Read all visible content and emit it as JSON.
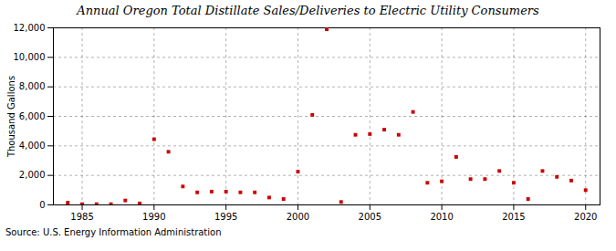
{
  "chart_data": {
    "type": "scatter",
    "title": "Annual Oregon Total Distillate Sales/Deliveries to Electric Utility Consumers",
    "ylabel": "Thousand Gallons",
    "annotation": "Source: U.S. Energy Information Administration",
    "x": [
      1984,
      1985,
      1986,
      1987,
      1988,
      1989,
      1990,
      1991,
      1992,
      1993,
      1994,
      1995,
      1996,
      1997,
      1998,
      1999,
      2000,
      2001,
      2002,
      2003,
      2004,
      2005,
      2006,
      2007,
      2008,
      2009,
      2010,
      2011,
      2012,
      2013,
      2014,
      2015,
      2016,
      2017,
      2018,
      2019,
      2020
    ],
    "values": [
      150,
      50,
      50,
      50,
      300,
      100,
      4450,
      3600,
      1250,
      850,
      900,
      900,
      850,
      850,
      500,
      400,
      2250,
      6100,
      11900,
      200,
      4750,
      4800,
      5100,
      4750,
      6300,
      1500,
      1600,
      3250,
      1750,
      1750,
      2300,
      1500,
      400,
      2300,
      1900,
      1650,
      1000
    ],
    "color": "#cc0000",
    "marker": "square",
    "xlim": [
      1983,
      2021
    ],
    "xticks": [
      1985,
      1990,
      1995,
      2000,
      2005,
      2010,
      2015,
      2020
    ],
    "ylim": [
      0,
      12000
    ],
    "yticks": [
      0,
      {
        "value": 2000,
        "label": "2,000"
      },
      {
        "value": 4000,
        "label": "4,000"
      },
      {
        "value": 6000,
        "label": "6,000"
      },
      {
        "value": 8000,
        "label": "8,000"
      },
      {
        "value": 10000,
        "label": "10,000"
      },
      {
        "value": 12000,
        "label": "12,000"
      }
    ],
    "grid": true
  }
}
